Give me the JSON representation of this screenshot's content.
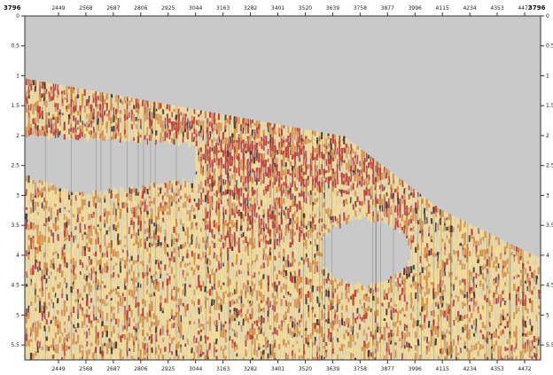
{
  "display": {
    "corner_labels": [
      "3796",
      "3796"
    ],
    "x_ticks": [
      "2449",
      "2568",
      "2687",
      "2806",
      "2925",
      "3044",
      "3163",
      "3282",
      "3401",
      "3520",
      "3639",
      "3758",
      "3877",
      "3996",
      "4115",
      "4234",
      "4353",
      "4472"
    ],
    "y_ticks": [
      "0",
      "0.5",
      "1",
      "1.5",
      "2",
      "2.5",
      "3",
      "3.5",
      "4",
      "4.5",
      "5",
      "5.5"
    ],
    "y_range": [
      0,
      5.75
    ],
    "colors": {
      "background": "#c9c9c9",
      "ink_light": "#ffe08a",
      "ink_mid": "#e08a2a",
      "ink_strong": "#c0301f",
      "ink_dark": "#3a2a1a"
    }
  }
}
